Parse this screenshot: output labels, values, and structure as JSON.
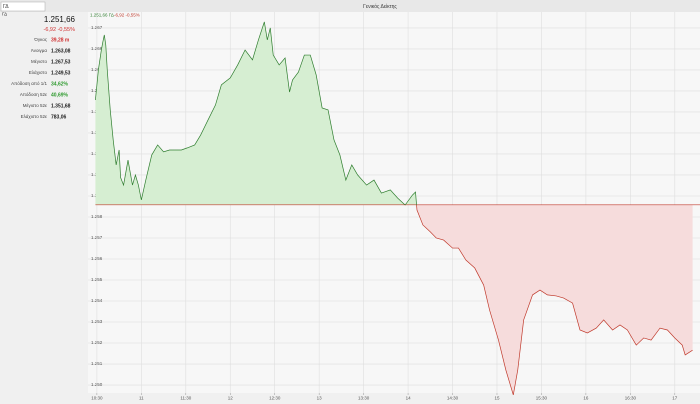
{
  "search": "ΓΔ",
  "symbol": "ΓΔ",
  "title": "Γενικός Δείκτης",
  "quote": {
    "price": "1.251,66",
    "change": "-6,92 -0,55%"
  },
  "stats": [
    {
      "label": "Όγκος",
      "value": "39,28 m",
      "color": "#d03030"
    },
    {
      "label": "Άνοιγμα",
      "value": "1.263,08",
      "color": "#222222"
    },
    {
      "label": "Μέγιστο",
      "value": "1.267,53",
      "color": "#222222"
    },
    {
      "label": "Ελάχιστο",
      "value": "1.249,53",
      "color": "#222222"
    },
    {
      "label": "Απόδοση από 1/1",
      "value": "34,62%",
      "color": "#2e9a2e"
    },
    {
      "label": "Απόδοση 52ε",
      "value": "40,69%",
      "color": "#2e9a2e"
    },
    {
      "label": "Μέγιστο 52ε",
      "value": "1.351,68",
      "color": "#222222"
    },
    {
      "label": "Ελάχιστο 52ε",
      "value": "783,06",
      "color": "#222222"
    }
  ],
  "chart_data": {
    "type": "line",
    "header_price": "1.251,66 ΓΔ",
    "header_change": "-6,92 -0,55%",
    "baseline": 1258.58,
    "above_color": "#2e7d2e",
    "above_fill": "#d6eed2",
    "below_color": "#c0392b",
    "below_fill": "#f6dcdc",
    "grid": true,
    "xlim": [
      624,
      1037
    ],
    "xticks": [
      {
        "value": 630,
        "label": "10:30"
      },
      {
        "value": 660,
        "label": "11"
      },
      {
        "value": 690,
        "label": "11:30"
      },
      {
        "value": 720,
        "label": "12"
      },
      {
        "value": 750,
        "label": "12:30"
      },
      {
        "value": 780,
        "label": "13"
      },
      {
        "value": 810,
        "label": "13:30"
      },
      {
        "value": 840,
        "label": "14"
      },
      {
        "value": 870,
        "label": "14:30"
      },
      {
        "value": 900,
        "label": "15"
      },
      {
        "value": 930,
        "label": "15:30"
      },
      {
        "value": 960,
        "label": "16"
      },
      {
        "value": 990,
        "label": "16:30"
      },
      {
        "value": 1020,
        "label": "17"
      }
    ],
    "ylim": [
      1249.62,
      1267.76
    ],
    "yticks": [
      {
        "value": 1250,
        "label": "1.250"
      },
      {
        "value": 1251,
        "label": "1.251"
      },
      {
        "value": 1252,
        "label": "1.252"
      },
      {
        "value": 1253,
        "label": "1.253"
      },
      {
        "value": 1254,
        "label": "1.254"
      },
      {
        "value": 1255,
        "label": "1.255"
      },
      {
        "value": 1256,
        "label": "1.256"
      },
      {
        "value": 1257,
        "label": "1.257"
      },
      {
        "value": 1258,
        "label": "1.258"
      },
      {
        "value": 1259,
        "label": "1.259"
      },
      {
        "value": 1260,
        "label": "1.260"
      },
      {
        "value": 1261,
        "label": "1.261"
      },
      {
        "value": 1262,
        "label": "1.262"
      },
      {
        "value": 1263,
        "label": "1.263"
      },
      {
        "value": 1264,
        "label": "1.264"
      },
      {
        "value": 1265,
        "label": "1.265"
      },
      {
        "value": 1266,
        "label": "1.266"
      },
      {
        "value": 1267,
        "label": "1.267"
      }
    ],
    "x": [
      629,
      631,
      633,
      634,
      635,
      636,
      637,
      639,
      641,
      643,
      645,
      646,
      648,
      651,
      654,
      656,
      658,
      660,
      663,
      667,
      671,
      675,
      679,
      683,
      687,
      691,
      696,
      700,
      705,
      710,
      714,
      720,
      725,
      730,
      735,
      739,
      743,
      745,
      747,
      749,
      753,
      757,
      760,
      762,
      766,
      770,
      774,
      778,
      782,
      786,
      790,
      794,
      798,
      802,
      806,
      812,
      817,
      822,
      828,
      833,
      838,
      843,
      845,
      846,
      850,
      855,
      859,
      864,
      870,
      874,
      879,
      885,
      891,
      895,
      901,
      906,
      911,
      914,
      918,
      924,
      929,
      934,
      940,
      945,
      951,
      956,
      961,
      967,
      972,
      978,
      983,
      988,
      994,
      999,
      1004,
      1010,
      1015,
      1020,
      1025,
      1027,
      1032
    ],
    "values": [
      1263.57,
      1265.0,
      1265.95,
      1266.33,
      1266.67,
      1266.19,
      1265.0,
      1263.1,
      1261.67,
      1260.48,
      1261.19,
      1259.88,
      1259.52,
      1260.71,
      1259.52,
      1260.0,
      1259.52,
      1258.81,
      1259.76,
      1260.95,
      1261.43,
      1261.1,
      1261.19,
      1261.19,
      1261.19,
      1261.29,
      1261.43,
      1261.9,
      1262.62,
      1263.33,
      1264.29,
      1264.62,
      1265.24,
      1265.95,
      1265.48,
      1266.43,
      1267.29,
      1266.43,
      1267.0,
      1265.71,
      1265.24,
      1265.57,
      1263.95,
      1264.52,
      1264.9,
      1265.71,
      1265.71,
      1264.76,
      1263.19,
      1263.1,
      1261.67,
      1260.95,
      1259.76,
      1260.48,
      1260.0,
      1259.52,
      1259.76,
      1259.14,
      1259.29,
      1258.9,
      1258.57,
      1259.05,
      1259.19,
      1258.33,
      1257.62,
      1257.29,
      1257.0,
      1256.9,
      1256.52,
      1256.52,
      1255.95,
      1255.57,
      1254.76,
      1253.57,
      1252.14,
      1250.71,
      1249.53,
      1250.71,
      1253.1,
      1254.29,
      1254.52,
      1254.29,
      1254.24,
      1254.14,
      1253.9,
      1252.62,
      1252.48,
      1252.71,
      1253.1,
      1252.62,
      1252.86,
      1252.62,
      1251.9,
      1252.24,
      1252.14,
      1252.71,
      1252.62,
      1252.24,
      1251.9,
      1251.43,
      1251.66
    ]
  }
}
